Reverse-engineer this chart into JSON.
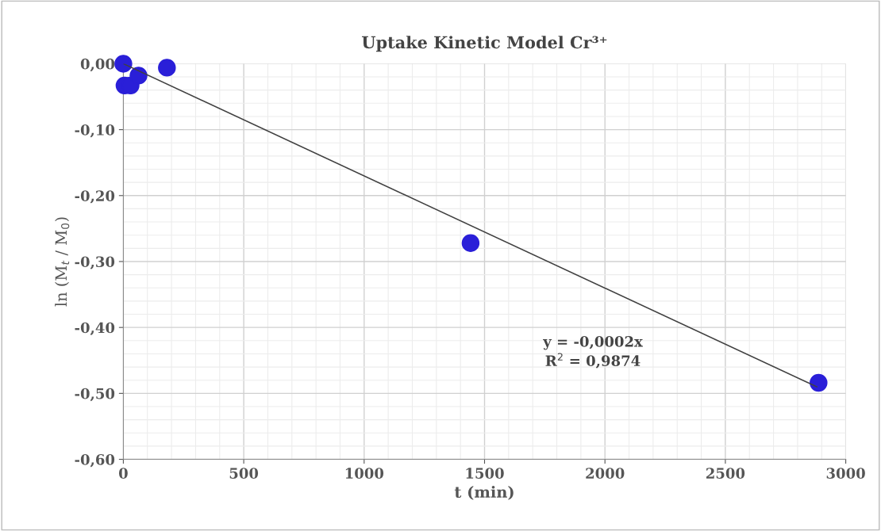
{
  "chart_data": {
    "type": "scatter",
    "title": "Uptake Kinetic Model Cr³⁺",
    "xlabel": "t (min)",
    "ylabel": "ln (M$_{t}$ / M$_{0}$)",
    "x": [
      0,
      5,
      30,
      63,
      181,
      1442,
      2887
    ],
    "series": [
      {
        "color": "#2a1fd8",
        "marker": "circle",
        "values": [
          0,
          -0.033,
          -0.033,
          -0.018,
          -0.006,
          -0.272,
          -0.484
        ]
      },
      {
        "type": "line",
        "color": "#404040",
        "marker": "none",
        "line_style": "solid",
        "x": [
          0,
          2880
        ],
        "values": [
          0,
          -0.49
        ]
      }
    ],
    "xlim": [
      0,
      3000
    ],
    "xticks": [
      0,
      500,
      1000,
      1500,
      2000,
      2500,
      3000
    ],
    "ylim": [
      -0.6,
      0
    ],
    "yticks": [
      {
        "value": -0.6,
        "label": "-0,60"
      },
      {
        "value": -0.5,
        "label": "-0,50"
      },
      {
        "value": -0.4,
        "label": "-0,40"
      },
      {
        "value": -0.3,
        "label": "-0,30"
      },
      {
        "value": -0.2,
        "label": "-0,20"
      },
      {
        "value": -0.1,
        "label": "-0,10"
      },
      {
        "value": 0,
        "label": "0,00"
      }
    ],
    "grid": true,
    "annotations": [
      "y = -0,0002x\nR$^{2}$ = 0,9874"
    ]
  }
}
